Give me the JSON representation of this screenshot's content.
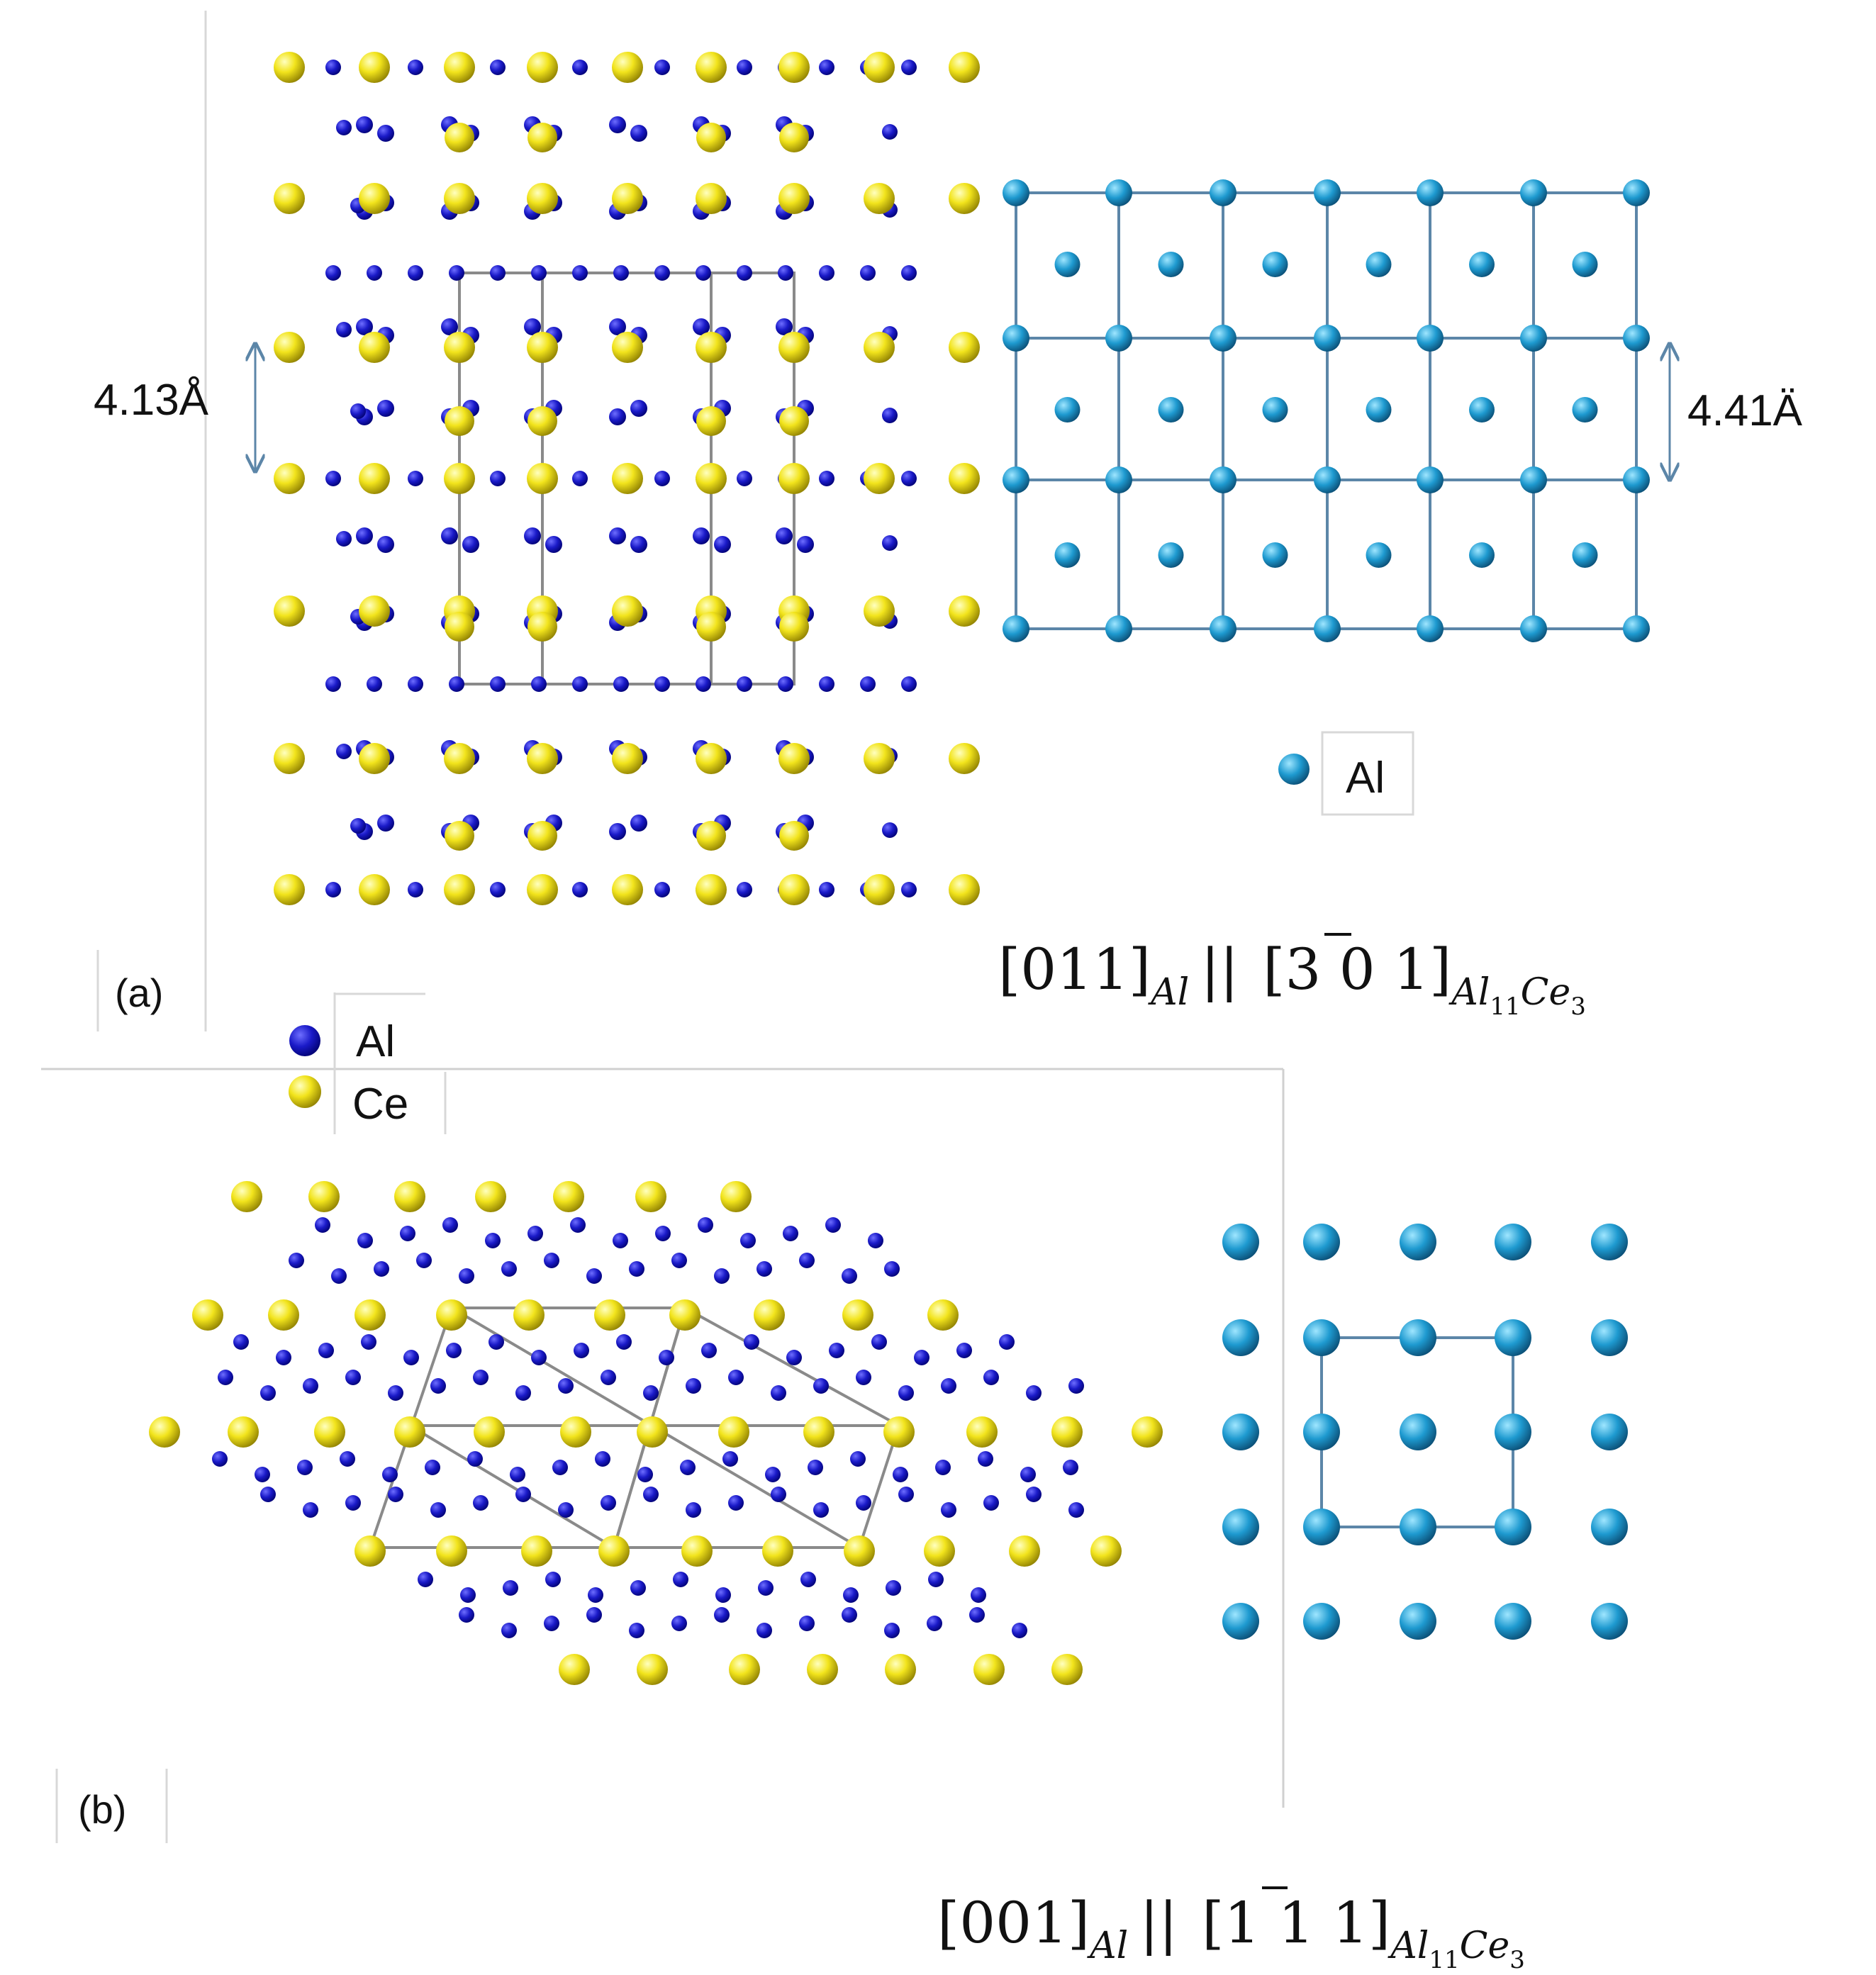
{
  "panel_a": {
    "label": "(a)",
    "dimension_left": "4.13Å",
    "dimension_right": "4.41Ä",
    "relation": {
      "open1": "[011]",
      "sub1": "Al",
      "sep": "||",
      "open2": "[",
      "bar_digit": "3",
      "rest2": " 0 1]",
      "sub2_a": "Al",
      "sub2_a_idx": "11",
      "sub2_b": "Ce",
      "sub2_b_idx": "3"
    }
  },
  "legend_al_only": {
    "al": "Al"
  },
  "legend_two": {
    "al": "Al",
    "ce": "Ce"
  },
  "panel_b": {
    "label": "(b)",
    "relation": {
      "open1": "[001]",
      "sub1": "Al",
      "sep": "||",
      "open2": "[",
      "bar_digit": "1",
      "rest2": " 1 1]",
      "sub2_a": "Al",
      "sub2_a_idx": "11",
      "sub2_b": "Ce",
      "sub2_b_idx": "3"
    }
  },
  "colors": {
    "ce": "#f2e41c",
    "ce_dark": "#8c7d00",
    "al_compound": "#1a1ac8",
    "al_compound_dark": "#00006e",
    "al_fcc": "#1e9ad0",
    "al_fcc_dark": "#0a4a70",
    "lattice_line": "#5c86a8",
    "cell_line": "#8a8a8a",
    "frame_line": "#d0d0d0"
  }
}
